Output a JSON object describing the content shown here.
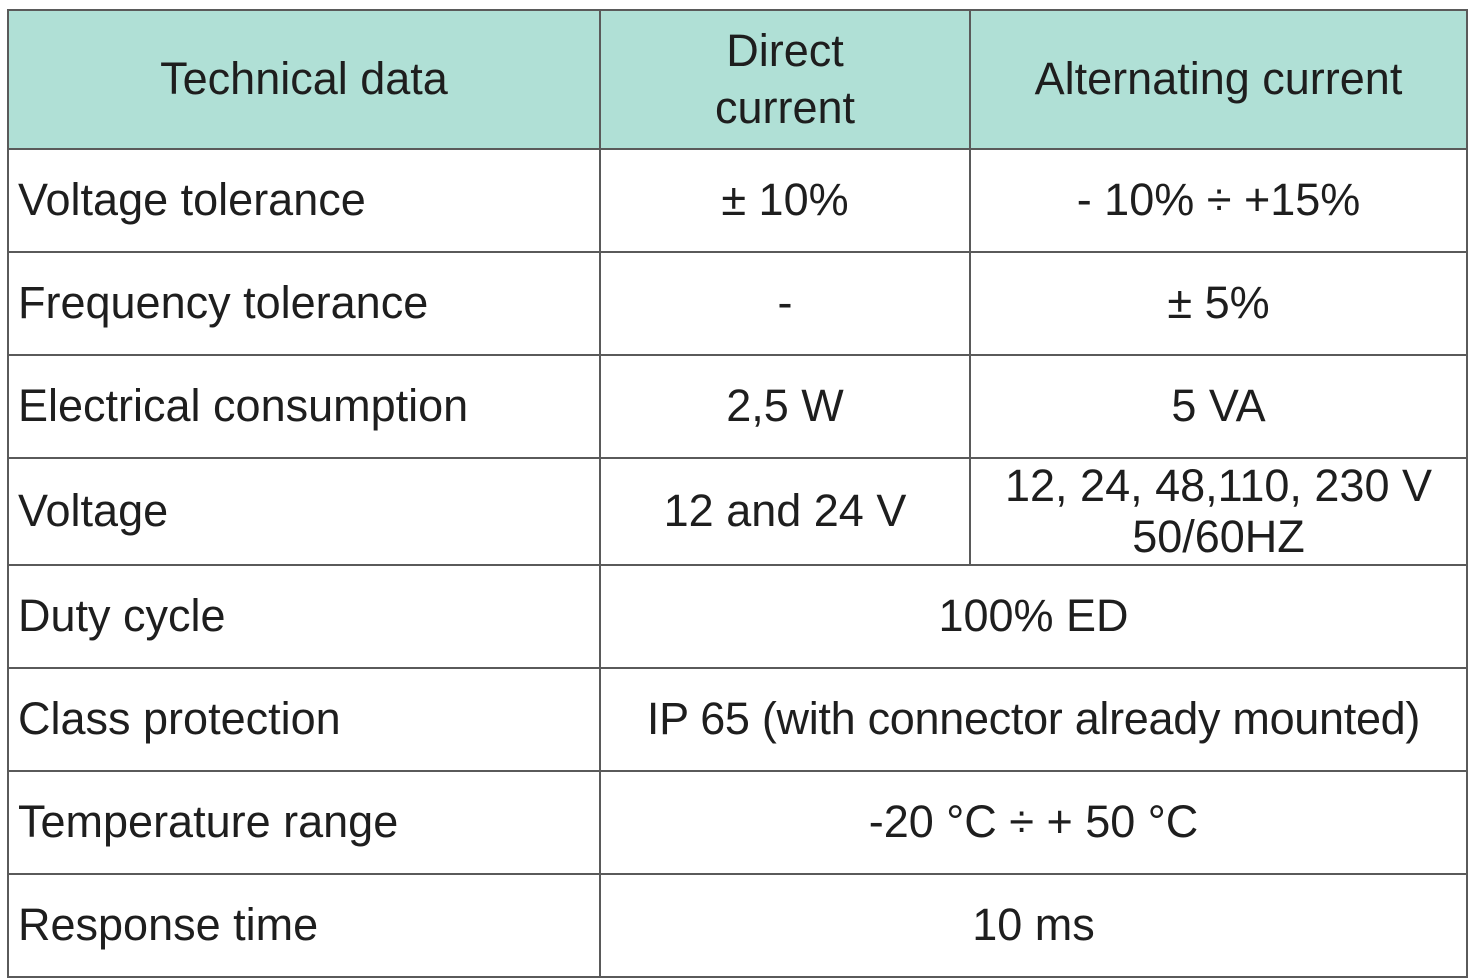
{
  "table": {
    "headers": [
      "Technical data",
      "Direct current",
      "Alternating current"
    ],
    "rows": [
      {
        "label": "Voltage tolerance",
        "dc": "± 10%",
        "ac": "- 10% ÷ +15%"
      },
      {
        "label": "Frequency tolerance",
        "dc": "-",
        "ac": "± 5%"
      },
      {
        "label": "Electrical consumption",
        "dc": "2,5 W",
        "ac": "5 VA"
      },
      {
        "label": "Voltage",
        "dc": "12 and 24 V",
        "ac": "12, 24, 48,110, 230 V 50/60HZ"
      },
      {
        "label": "Duty cycle",
        "value": "100% ED"
      },
      {
        "label": "Class protection",
        "value": "IP 65 (with connector already mounted)"
      },
      {
        "label": "Temperature range",
        "value": "-20 °C ÷ + 50 °C"
      },
      {
        "label": "Response time",
        "value": "10 ms"
      }
    ]
  },
  "colors": {
    "header_background": "#b0e0d6",
    "border": "#5a5a5a",
    "text": "#1e1e1e"
  }
}
